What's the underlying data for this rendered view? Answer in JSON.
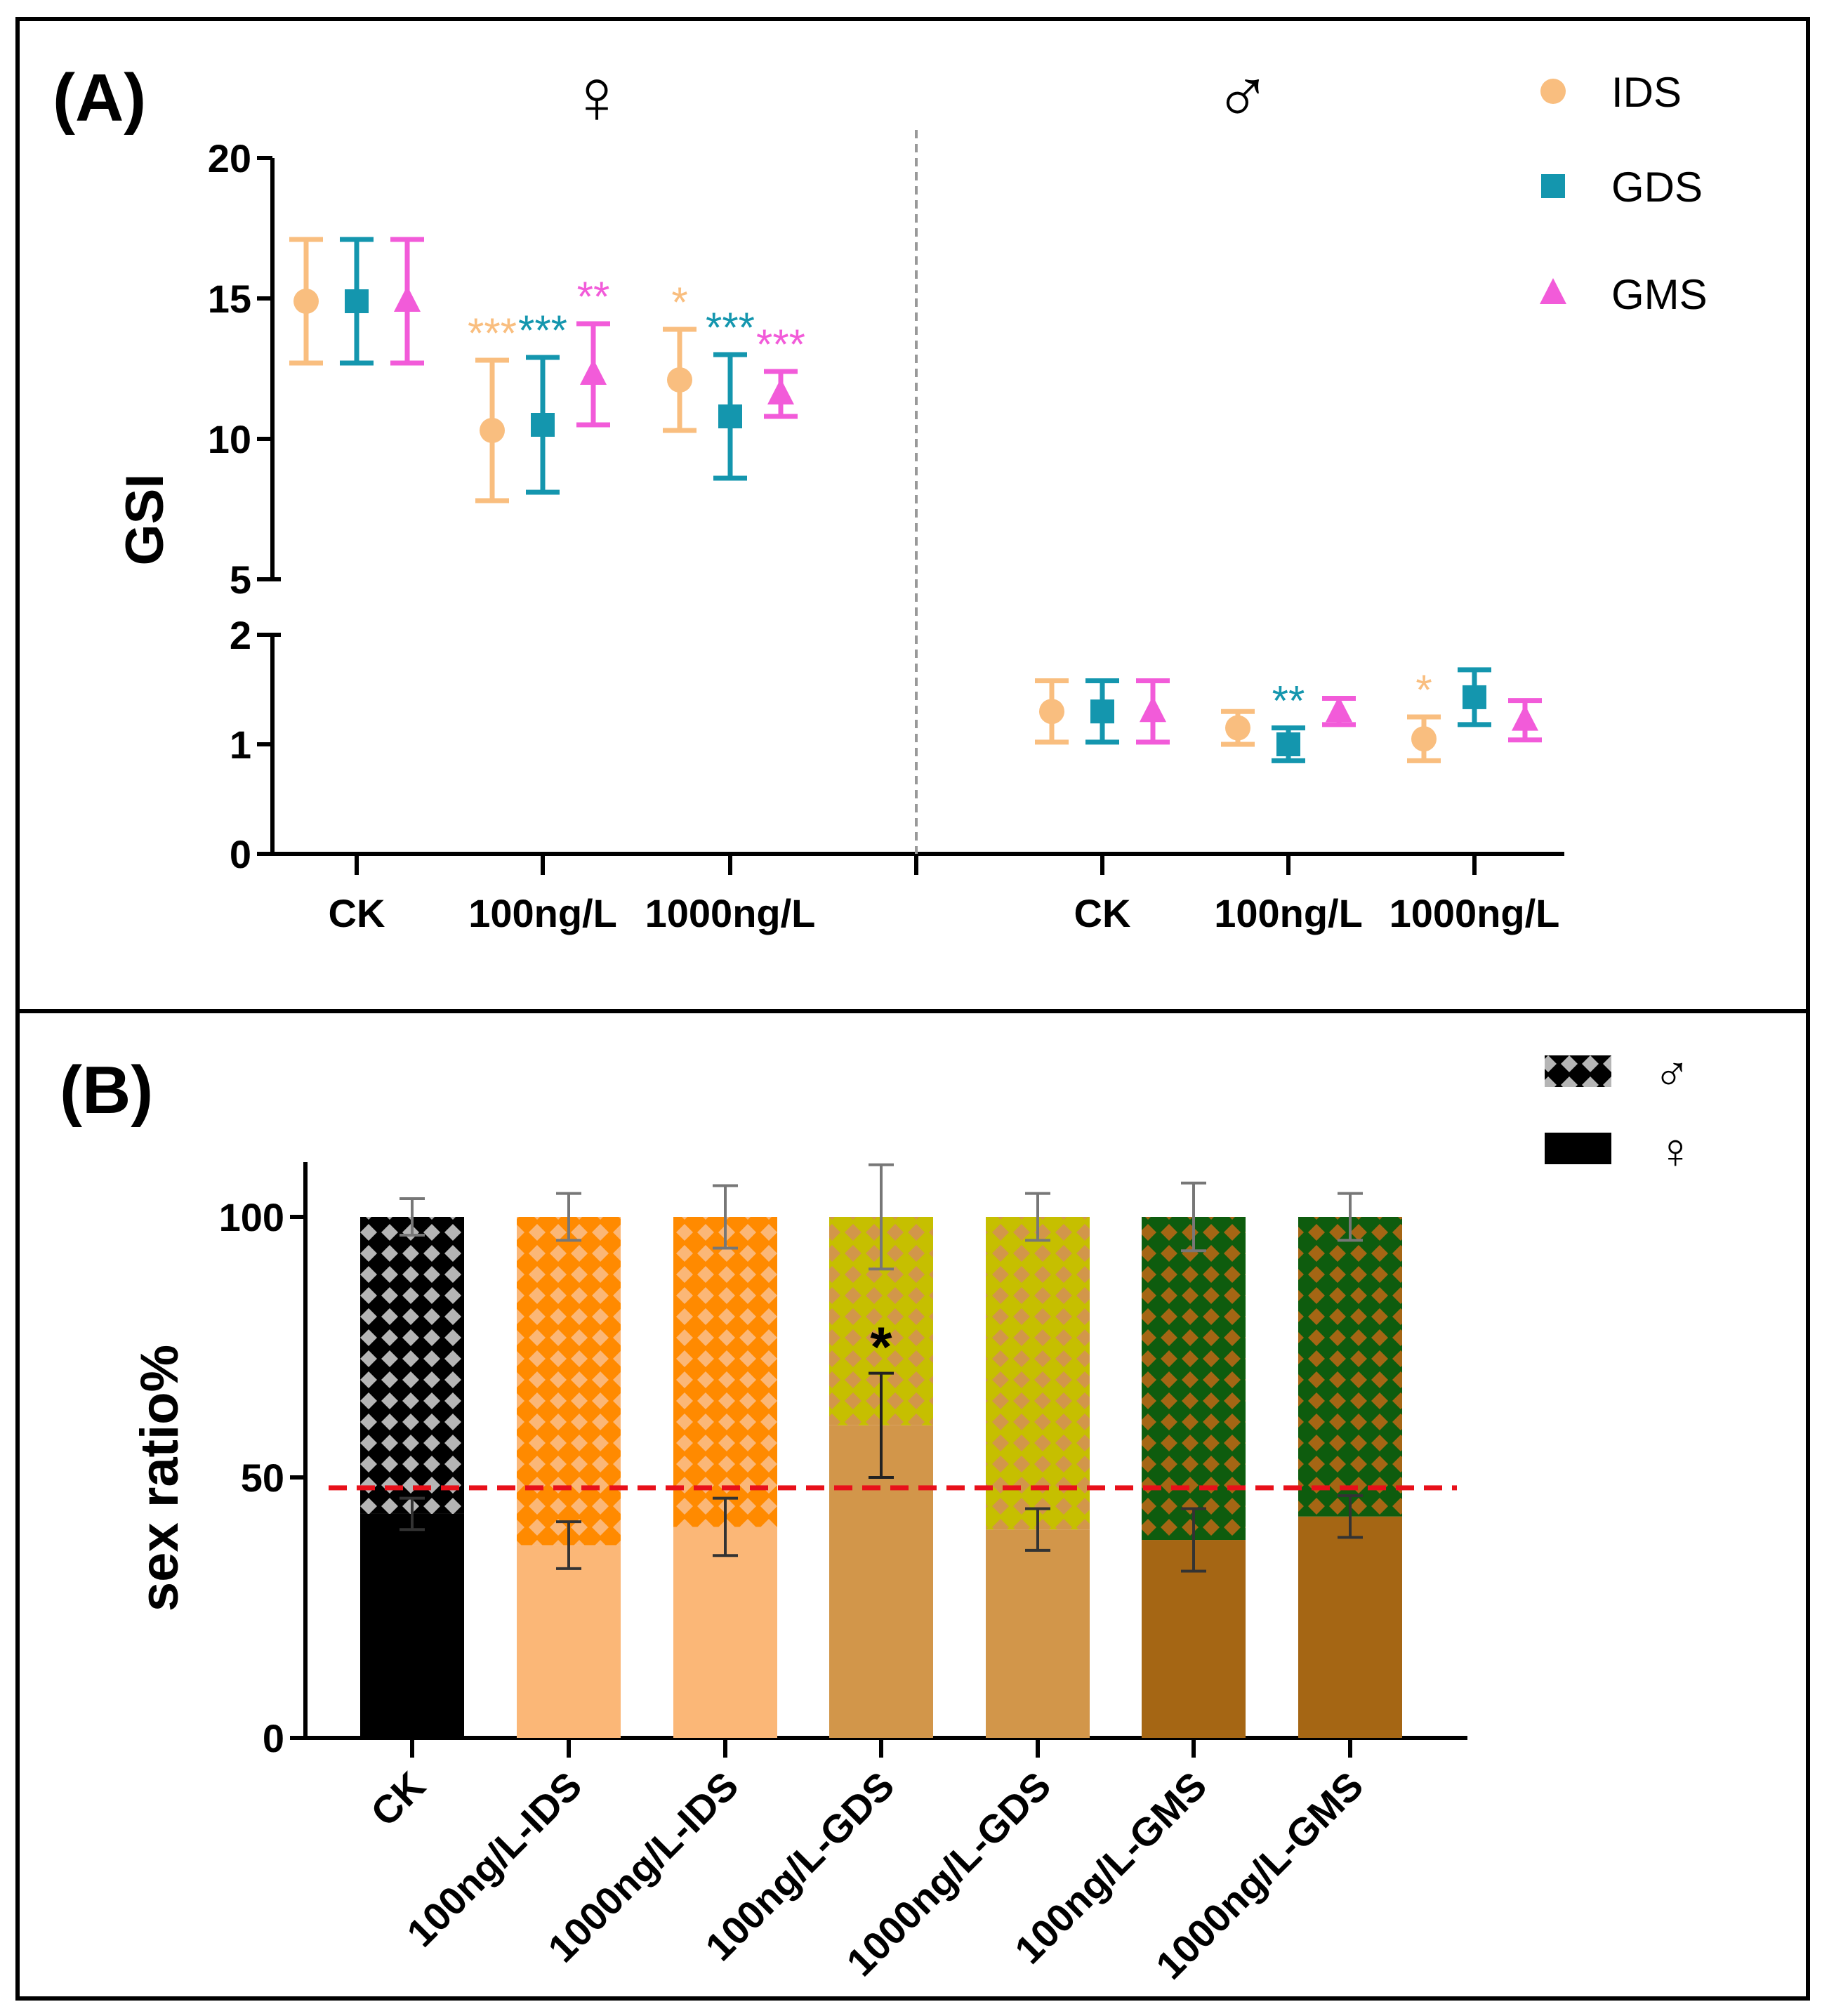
{
  "colors": {
    "IDS": "#F9BE7F",
    "GDS": "#1496AE",
    "GMS": "#F25BD9",
    "CK_bar": "#000000",
    "IDS_female": "#FBB777",
    "IDS_male": "#FF8A00",
    "GDS_female": "#D2964A",
    "GDS_male": "#C6BF00",
    "GMS_female": "#A56614",
    "GMS_male": "#0E5C0E",
    "refline": "#E8101A",
    "divider": "#999999"
  },
  "chart_data": [
    {
      "panel": "(A)",
      "type": "scatter",
      "title_female": "♀",
      "title_male": "♂",
      "ylabel": "GSI",
      "ylim_upper": [
        5,
        20
      ],
      "ylim_lower": [
        0,
        2
      ],
      "yticks_upper": [
        "5",
        "10",
        "15",
        "20"
      ],
      "yticks_lower": [
        "0",
        "1",
        "2"
      ],
      "groups": [
        "CK",
        "100ng/L",
        "1000ng/L",
        "CK",
        "100ng/L",
        "1000ng/L"
      ],
      "legend": [
        {
          "key": "IDS",
          "label": "IDS",
          "marker": "circle"
        },
        {
          "key": "GDS",
          "label": "GDS",
          "marker": "square"
        },
        {
          "key": "GMS",
          "label": "GMS",
          "marker": "triangle"
        }
      ],
      "series": [
        {
          "name": "IDS",
          "means": [
            14.9,
            10.3,
            12.1,
            1.3,
            1.15,
            1.05
          ],
          "errors": [
            2.2,
            2.5,
            1.8,
            0.28,
            0.15,
            0.2
          ],
          "sig": [
            "",
            "***",
            "*",
            "",
            "",
            "*"
          ]
        },
        {
          "name": "GDS",
          "means": [
            14.9,
            10.5,
            10.8,
            1.3,
            1.0,
            1.43
          ],
          "errors": [
            2.2,
            2.4,
            2.2,
            0.28,
            0.15,
            0.25
          ],
          "sig": [
            "",
            "***",
            "***",
            "",
            "**",
            ""
          ]
        },
        {
          "name": "GMS",
          "means": [
            14.9,
            12.3,
            11.6,
            1.3,
            1.3,
            1.22
          ],
          "errors": [
            2.2,
            1.8,
            0.8,
            0.28,
            0.12,
            0.18
          ],
          "sig": [
            "",
            "**",
            "***",
            "",
            "",
            ""
          ]
        }
      ]
    },
    {
      "panel": "(B)",
      "type": "bar",
      "stacked": true,
      "ylabel": "sex ratio%",
      "ylim": [
        0,
        110
      ],
      "yticks": [
        "0",
        "50",
        "100"
      ],
      "reference_line": 48,
      "categories": [
        "CK",
        "100ng/L-IDS",
        "1000ng/L-IDS",
        "100ng/L-GDS",
        "1000ng/L-GDS",
        "100ng/L-GMS",
        "1000ng/L-GMS"
      ],
      "legend": [
        {
          "label": "♂",
          "pattern": "crosshatch"
        },
        {
          "label": "♀",
          "pattern": "solid"
        }
      ],
      "series": [
        {
          "name": "♀",
          "values": [
            43,
            37,
            40.5,
            60,
            40,
            38,
            42.5
          ],
          "errors": [
            3,
            4.5,
            5.5,
            10,
            4,
            6,
            4
          ]
        },
        {
          "name": "♂",
          "values": [
            57,
            63,
            59.5,
            40,
            60,
            62,
            57.5
          ],
          "errors": [
            3.5,
            4.5,
            6,
            10,
            4.5,
            6.5,
            4.5
          ]
        }
      ],
      "bar_colors_female": [
        "CK_bar",
        "IDS_female",
        "IDS_female",
        "GDS_female",
        "GDS_female",
        "GMS_female",
        "GMS_female"
      ],
      "bar_colors_male": [
        "CK_bar",
        "IDS_male",
        "IDS_male",
        "GDS_male",
        "GDS_male",
        "GMS_male",
        "GMS_male"
      ],
      "sig": [
        "",
        "",
        "",
        "*",
        "",
        "",
        ""
      ]
    }
  ]
}
